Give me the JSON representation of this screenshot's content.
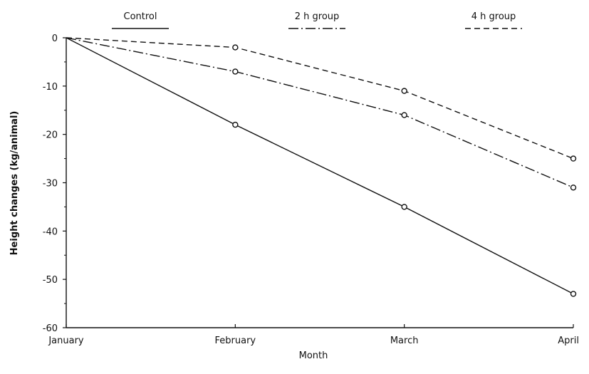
{
  "chart_data": {
    "type": "line",
    "title": "",
    "xlabel": "Month",
    "ylabel": "Height changes (kg/animal)",
    "categories": [
      "January",
      "February",
      "March",
      "April"
    ],
    "yticks": [
      0,
      -10,
      -20,
      -30,
      -40,
      -50,
      -60
    ],
    "ytick_labels": [
      "0",
      "-10",
      "-20",
      "-30",
      "-40",
      "-50",
      "-60"
    ],
    "ylim": [
      -60,
      0
    ],
    "grid": false,
    "legend_position": "top",
    "series": [
      {
        "name": "Control",
        "style": "solid",
        "values": [
          0,
          -18,
          -35,
          -53
        ]
      },
      {
        "name": "2 h group",
        "style": "dash-dot",
        "values": [
          0,
          -7,
          -16,
          -31
        ]
      },
      {
        "name": "4 h group",
        "style": "dashed",
        "values": [
          0,
          -2,
          -11,
          -25
        ]
      }
    ],
    "line_color": "#111111"
  }
}
